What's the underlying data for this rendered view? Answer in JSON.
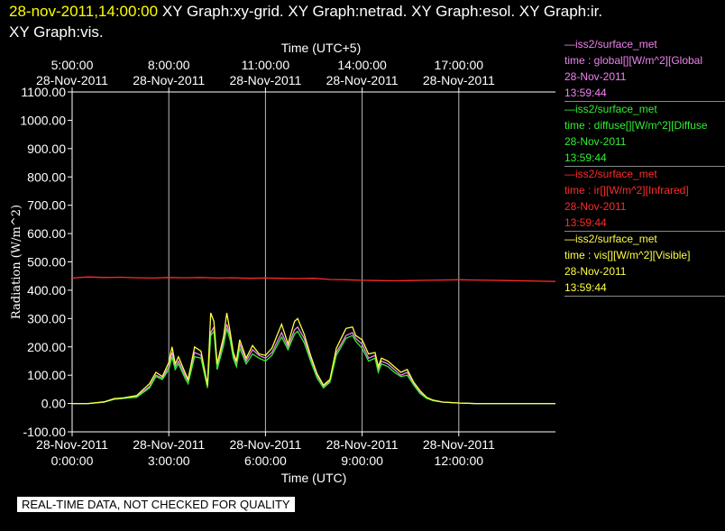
{
  "header": {
    "date_time": "28-nov-2011,14:00:00",
    "graph_list_line1": "XY Graph:xy-grid.  XY Graph:netrad.  XY Graph:esol.  XY Graph:ir.",
    "graph_list_line2": "XY Graph:vis."
  },
  "legend": [
    {
      "source": "—iss2/surface_met",
      "field": "time : global[][W/m^2][Global",
      "date": "28-Nov-2011",
      "time": "13:59:44",
      "color": "#ee82ee"
    },
    {
      "source": "—iss2/surface_met",
      "field": "time : diffuse[][W/m^2][Diffuse",
      "date": "28-Nov-2011",
      "time": "13:59:44",
      "color": "#33ee33"
    },
    {
      "source": "—iss2/surface_met",
      "field": "time : ir[][W/m^2][Infrared]",
      "date": "28-Nov-2011",
      "time": "13:59:44",
      "color": "#ff2a2a"
    },
    {
      "source": "—iss2/surface_met",
      "field": "time : vis[][W/m^2][Visible]",
      "date": "28-Nov-2011",
      "time": "13:59:44",
      "color": "#ffff44"
    }
  ],
  "warning": "REAL-TIME DATA, NOT CHECKED FOR QUALITY",
  "chart_data": {
    "type": "line",
    "xlabel": "Time (UTC)",
    "x2label": "Time (UTC+5)",
    "ylabel": "Radiation (W/m^2)",
    "ylim": [
      -100,
      1100
    ],
    "xlim": [
      0,
      15
    ],
    "x_unit": "hours UTC on 28-Nov-2011",
    "grid": "vertical lines at bottom ticks",
    "yticks": [
      {
        "v": 1100,
        "label": "1100.00"
      },
      {
        "v": 1000,
        "label": "1000.00"
      },
      {
        "v": 900,
        "label": "900.00"
      },
      {
        "v": 800,
        "label": "800.00"
      },
      {
        "v": 700,
        "label": "700.00"
      },
      {
        "v": 600,
        "label": "600.00"
      },
      {
        "v": 500,
        "label": "500.00"
      },
      {
        "v": 400,
        "label": "400.00"
      },
      {
        "v": 300,
        "label": "300.00"
      },
      {
        "v": 200,
        "label": "200.00"
      },
      {
        "v": 100,
        "label": "100.00"
      },
      {
        "v": 0,
        "label": "0.00"
      },
      {
        "v": -100,
        "label": "-100.00"
      }
    ],
    "xticks_bottom": [
      {
        "h": 0,
        "date": "28-Nov-2011",
        "time": "0:00:00"
      },
      {
        "h": 3,
        "date": "28-Nov-2011",
        "time": "3:00:00"
      },
      {
        "h": 6,
        "date": "28-Nov-2011",
        "time": "6:00:00"
      },
      {
        "h": 9,
        "date": "28-Nov-2011",
        "time": "9:00:00"
      },
      {
        "h": 12,
        "date": "28-Nov-2011",
        "time": "12:00:00"
      }
    ],
    "xticks_top": [
      {
        "h": 0,
        "time": "5:00:00",
        "date": "28-Nov-2011"
      },
      {
        "h": 3,
        "time": "8:00:00",
        "date": "28-Nov-2011"
      },
      {
        "h": 6,
        "time": "11:00:00",
        "date": "28-Nov-2011"
      },
      {
        "h": 9,
        "time": "14:00:00",
        "date": "28-Nov-2011"
      },
      {
        "h": 12,
        "time": "17:00:00",
        "date": "28-Nov-2011"
      }
    ],
    "series": [
      {
        "name": "global",
        "color": "#ee82ee",
        "x": [
          0,
          0.5,
          1,
          1.3,
          1.6,
          2,
          2.4,
          2.6,
          2.8,
          3,
          3.1,
          3.2,
          3.3,
          3.5,
          3.6,
          3.8,
          4,
          4.2,
          4.3,
          4.4,
          4.5,
          4.7,
          4.8,
          4.9,
          5,
          5.1,
          5.2,
          5.4,
          5.6,
          5.8,
          6,
          6.2,
          6.5,
          6.7,
          6.9,
          7,
          7.2,
          7.4,
          7.6,
          7.8,
          8,
          8.2,
          8.5,
          8.7,
          8.8,
          9,
          9.2,
          9.4,
          9.5,
          9.6,
          9.8,
          10,
          10.2,
          10.4,
          10.6,
          10.8,
          11,
          11.2,
          11.5,
          11.8,
          12,
          12.5,
          13,
          13.5,
          14,
          14.5,
          15
        ],
        "y": [
          0,
          0,
          5,
          15,
          18,
          25,
          60,
          100,
          90,
          130,
          180,
          130,
          150,
          100,
          80,
          180,
          170,
          60,
          250,
          270,
          130,
          220,
          280,
          240,
          170,
          140,
          210,
          150,
          190,
          170,
          160,
          180,
          250,
          200,
          260,
          270,
          230,
          160,
          100,
          60,
          80,
          180,
          240,
          250,
          230,
          210,
          160,
          170,
          120,
          150,
          140,
          120,
          100,
          110,
          70,
          40,
          20,
          10,
          5,
          3,
          2,
          0,
          0,
          0,
          0,
          0,
          0
        ]
      },
      {
        "name": "diffuse",
        "color": "#33ee33",
        "x": [
          0,
          0.5,
          1,
          1.3,
          1.6,
          2,
          2.4,
          2.6,
          2.8,
          3,
          3.1,
          3.2,
          3.3,
          3.5,
          3.6,
          3.8,
          4,
          4.2,
          4.3,
          4.4,
          4.5,
          4.7,
          4.8,
          4.9,
          5,
          5.1,
          5.2,
          5.4,
          5.6,
          5.8,
          6,
          6.2,
          6.5,
          6.7,
          6.9,
          7,
          7.2,
          7.4,
          7.6,
          7.8,
          8,
          8.2,
          8.5,
          8.7,
          8.8,
          9,
          9.2,
          9.4,
          9.5,
          9.6,
          9.8,
          10,
          10.2,
          10.4,
          10.6,
          10.8,
          11,
          11.2,
          11.5,
          11.8,
          12,
          12.5,
          13,
          13.5,
          14,
          14.5,
          15
        ],
        "y": [
          0,
          0,
          5,
          15,
          18,
          22,
          55,
          95,
          85,
          120,
          165,
          120,
          140,
          90,
          70,
          165,
          160,
          55,
          240,
          255,
          120,
          205,
          265,
          225,
          160,
          130,
          195,
          140,
          175,
          160,
          150,
          170,
          235,
          190,
          245,
          255,
          215,
          150,
          90,
          55,
          75,
          170,
          230,
          240,
          220,
          195,
          150,
          160,
          110,
          140,
          130,
          110,
          95,
          100,
          65,
          35,
          18,
          10,
          5,
          3,
          2,
          0,
          0,
          0,
          0,
          0,
          0
        ]
      },
      {
        "name": "ir",
        "color": "#ff2a2a",
        "x": [
          0,
          0.5,
          1,
          1.5,
          2,
          2.5,
          3,
          3.5,
          4,
          4.5,
          5,
          5.5,
          6,
          6.5,
          7,
          7.5,
          8,
          8.5,
          9,
          9.5,
          10,
          10.5,
          11,
          11.5,
          12,
          12.5,
          13,
          13.5,
          14,
          14.5,
          15
        ],
        "y": [
          443,
          447,
          445,
          446,
          444,
          443,
          445,
          444,
          445,
          443,
          444,
          442,
          443,
          442,
          441,
          442,
          438,
          437,
          435,
          434,
          433,
          434,
          435,
          436,
          437,
          436,
          435,
          434,
          433,
          432,
          431
        ]
      },
      {
        "name": "vis",
        "color": "#ffff44",
        "x": [
          0,
          0.5,
          1,
          1.3,
          1.6,
          2,
          2.4,
          2.6,
          2.8,
          3,
          3.1,
          3.2,
          3.3,
          3.5,
          3.6,
          3.8,
          4,
          4.2,
          4.3,
          4.4,
          4.5,
          4.7,
          4.8,
          4.9,
          5,
          5.1,
          5.2,
          5.4,
          5.6,
          5.8,
          6,
          6.2,
          6.5,
          6.7,
          6.9,
          7,
          7.2,
          7.4,
          7.6,
          7.8,
          8,
          8.2,
          8.5,
          8.7,
          8.8,
          9,
          9.2,
          9.4,
          9.5,
          9.6,
          9.8,
          10,
          10.2,
          10.4,
          10.6,
          10.8,
          11,
          11.2,
          11.5,
          11.8,
          12,
          12.5,
          13,
          13.5,
          14,
          14.5,
          15
        ],
        "y": [
          0,
          0,
          6,
          17,
          20,
          28,
          70,
          110,
          95,
          145,
          200,
          140,
          165,
          110,
          85,
          200,
          185,
          65,
          320,
          290,
          140,
          235,
          320,
          255,
          180,
          150,
          225,
          160,
          205,
          175,
          170,
          195,
          280,
          210,
          290,
          300,
          245,
          170,
          105,
          65,
          85,
          195,
          265,
          270,
          240,
          225,
          175,
          180,
          130,
          160,
          150,
          130,
          110,
          120,
          75,
          45,
          22,
          12,
          5,
          3,
          2,
          0,
          0,
          0,
          0,
          0,
          0
        ]
      }
    ]
  }
}
